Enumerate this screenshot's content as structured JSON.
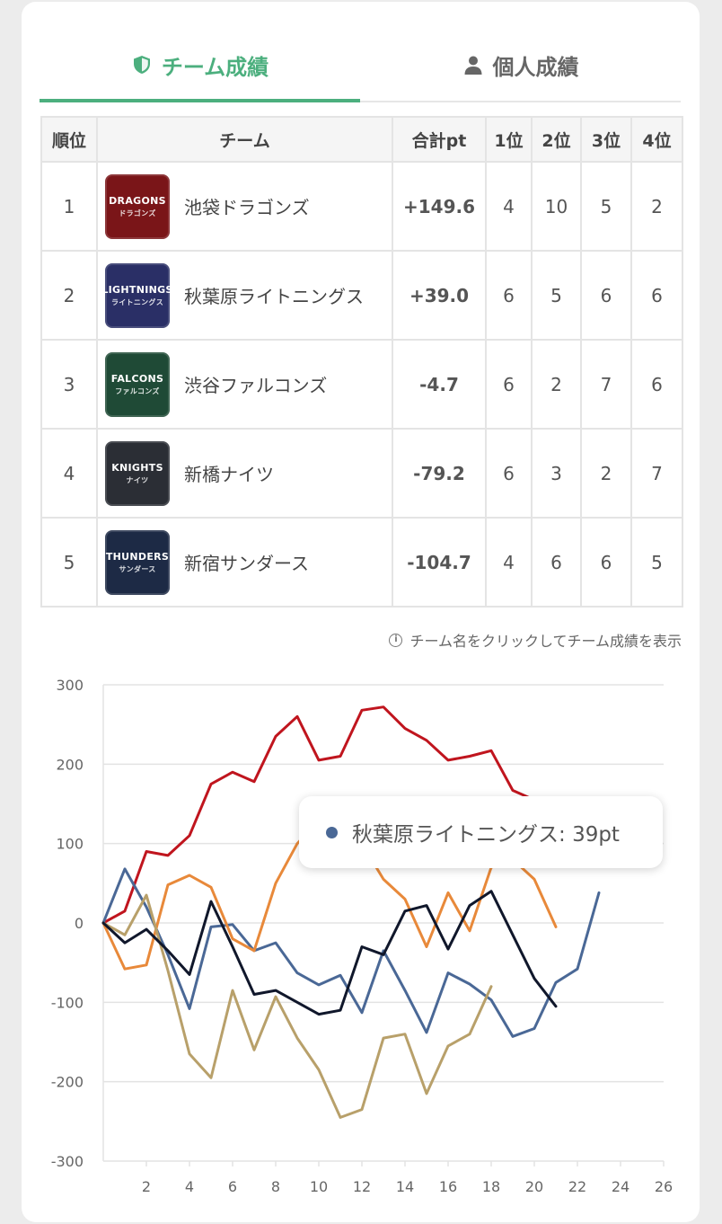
{
  "tabs": [
    {
      "label": "チーム成績",
      "active": true
    },
    {
      "label": "個人成績",
      "active": false
    }
  ],
  "table": {
    "headers": [
      "順位",
      "チーム",
      "合計pt",
      "1位",
      "2位",
      "3位",
      "4位"
    ],
    "rows": [
      {
        "rank": "1",
        "team": "池袋ドラゴンズ",
        "logo_text": "DRAGONS",
        "logo_sub": "ドラゴンズ",
        "logo_color": "#7a1518",
        "total": "+149.6",
        "first": "4",
        "second": "10",
        "third": "5",
        "fourth": "2"
      },
      {
        "rank": "2",
        "team": "秋葉原ライトニングス",
        "logo_text": "LIGHTNINGS",
        "logo_sub": "ライトニングス",
        "logo_color": "#2a2f66",
        "total": "+39.0",
        "first": "6",
        "second": "5",
        "third": "6",
        "fourth": "6"
      },
      {
        "rank": "3",
        "team": "渋谷ファルコンズ",
        "logo_text": "FALCONS",
        "logo_sub": "ファルコンズ",
        "logo_color": "#1f4a36",
        "total": "-4.7",
        "first": "6",
        "second": "2",
        "third": "7",
        "fourth": "6"
      },
      {
        "rank": "4",
        "team": "新橋ナイツ",
        "logo_text": "KNIGHTS",
        "logo_sub": "ナイツ",
        "logo_color": "#2b2e35",
        "total": "-79.2",
        "first": "6",
        "second": "3",
        "third": "2",
        "fourth": "7"
      },
      {
        "rank": "5",
        "team": "新宿サンダース",
        "logo_text": "THUNDERS",
        "logo_sub": "サンダース",
        "logo_color": "#1d2a45",
        "total": "-104.7",
        "first": "4",
        "second": "6",
        "third": "6",
        "fourth": "5"
      }
    ]
  },
  "hint": "チーム名をクリックしてチーム成績を表示",
  "tooltip": {
    "team": "秋葉原ライトニングス",
    "value_text": "39pt",
    "color": "#4a6896"
  },
  "colors": {
    "accent": "#4caf7e",
    "negative": "#a84a3e"
  },
  "chart_data": {
    "type": "line",
    "ylim": [
      -300,
      300
    ],
    "yticks": [
      300,
      200,
      100,
      0,
      -100,
      -200,
      -300
    ],
    "xlim": [
      0,
      26
    ],
    "xticks": [
      2,
      4,
      6,
      8,
      10,
      12,
      14,
      16,
      18,
      20,
      22,
      24,
      26
    ],
    "grid": true,
    "series": [
      {
        "color": "#c0151e",
        "points": [
          [
            0,
            0
          ],
          [
            1,
            15
          ],
          [
            2,
            90
          ],
          [
            3,
            85
          ],
          [
            4,
            110
          ],
          [
            5,
            175
          ],
          [
            6,
            190
          ],
          [
            7,
            178
          ],
          [
            8,
            235
          ],
          [
            9,
            260
          ],
          [
            10,
            205
          ],
          [
            11,
            210
          ],
          [
            12,
            268
          ],
          [
            13,
            272
          ],
          [
            14,
            245
          ],
          [
            15,
            230
          ],
          [
            16,
            205
          ],
          [
            17,
            210
          ],
          [
            18,
            217
          ],
          [
            19,
            167
          ],
          [
            20,
            155
          ]
        ]
      },
      {
        "color": "#4a6896",
        "points": [
          [
            0,
            0
          ],
          [
            1,
            68
          ],
          [
            2,
            20
          ],
          [
            3,
            -40
          ],
          [
            4,
            -108
          ],
          [
            5,
            -5
          ],
          [
            6,
            -2
          ],
          [
            7,
            -35
          ],
          [
            8,
            -25
          ],
          [
            9,
            -63
          ],
          [
            10,
            -78
          ],
          [
            11,
            -66
          ],
          [
            12,
            -113
          ],
          [
            13,
            -35
          ],
          [
            14,
            -85
          ],
          [
            15,
            -138
          ],
          [
            16,
            -63
          ],
          [
            17,
            -77
          ],
          [
            18,
            -97
          ],
          [
            19,
            -143
          ],
          [
            20,
            -133
          ],
          [
            21,
            -75
          ],
          [
            22,
            -58
          ],
          [
            23,
            38
          ]
        ]
      },
      {
        "color": "#e8893a",
        "points": [
          [
            0,
            0
          ],
          [
            1,
            -58
          ],
          [
            2,
            -53
          ],
          [
            3,
            48
          ],
          [
            4,
            60
          ],
          [
            5,
            45
          ],
          [
            6,
            -20
          ],
          [
            7,
            -35
          ],
          [
            8,
            50
          ],
          [
            9,
            100
          ],
          [
            10,
            130
          ],
          [
            11,
            115
          ],
          [
            12,
            100
          ],
          [
            13,
            55
          ],
          [
            14,
            30
          ],
          [
            15,
            -30
          ],
          [
            16,
            38
          ],
          [
            17,
            -10
          ],
          [
            18,
            70
          ],
          [
            19,
            80
          ],
          [
            20,
            55
          ],
          [
            21,
            -5
          ]
        ]
      },
      {
        "color": "#b8a06a",
        "points": [
          [
            0,
            0
          ],
          [
            1,
            -15
          ],
          [
            2,
            35
          ],
          [
            3,
            -60
          ],
          [
            4,
            -165
          ],
          [
            5,
            -195
          ],
          [
            6,
            -85
          ],
          [
            7,
            -160
          ],
          [
            8,
            -93
          ],
          [
            9,
            -145
          ],
          [
            10,
            -185
          ],
          [
            11,
            -245
          ],
          [
            12,
            -235
          ],
          [
            13,
            -145
          ],
          [
            14,
            -140
          ],
          [
            15,
            -215
          ],
          [
            16,
            -155
          ],
          [
            17,
            -140
          ],
          [
            18,
            -80
          ]
        ]
      },
      {
        "color": "#10172b",
        "points": [
          [
            0,
            0
          ],
          [
            1,
            -25
          ],
          [
            2,
            -8
          ],
          [
            3,
            -35
          ],
          [
            4,
            -65
          ],
          [
            5,
            27
          ],
          [
            6,
            -30
          ],
          [
            7,
            -90
          ],
          [
            8,
            -85
          ],
          [
            9,
            -100
          ],
          [
            10,
            -115
          ],
          [
            11,
            -110
          ],
          [
            12,
            -30
          ],
          [
            13,
            -40
          ],
          [
            14,
            15
          ],
          [
            15,
            22
          ],
          [
            16,
            -33
          ],
          [
            17,
            22
          ],
          [
            18,
            40
          ],
          [
            19,
            -15
          ],
          [
            20,
            -70
          ],
          [
            21,
            -105
          ]
        ]
      }
    ]
  }
}
